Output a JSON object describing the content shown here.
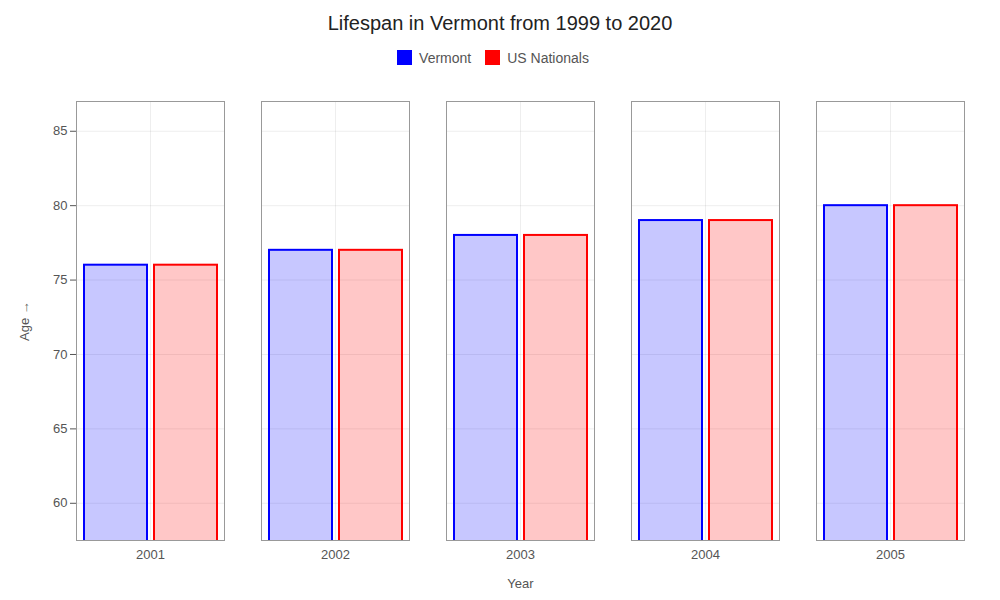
{
  "chart_data": {
    "type": "bar",
    "title": "Lifespan in Vermont from 1999 to 2020",
    "x_label": "Year",
    "y_label": "Age",
    "categories": [
      "2001",
      "2002",
      "2003",
      "2004",
      "2005"
    ],
    "series": [
      {
        "name": "Vermont",
        "color": "#0000ff",
        "values": [
          76,
          77,
          78,
          79,
          80
        ]
      },
      {
        "name": "US Nationals",
        "color": "#ff0000",
        "values": [
          76,
          77,
          78,
          79,
          80
        ]
      }
    ],
    "ylim": [
      57.5,
      87
    ],
    "yticks": [
      60,
      65,
      70,
      75,
      80,
      85
    ],
    "grid": true,
    "legend": "top"
  }
}
